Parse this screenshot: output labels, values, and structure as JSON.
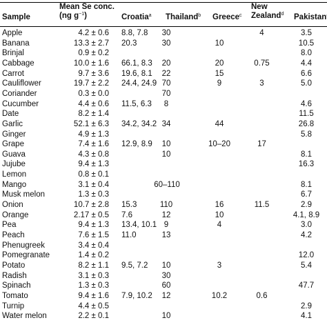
{
  "table": {
    "headers": {
      "sample": "Sample",
      "mean_line1": "Mean Se conc.",
      "mean_line2_pre": "(ng g",
      "mean_line2_sup": "−1",
      "mean_line2_post": ")",
      "croatia": "Croatia",
      "croatia_note": "a",
      "thailand": "Thailand",
      "thailand_note": "b",
      "greece": "Greece",
      "greece_note": "c",
      "nz_line1": "New",
      "nz_line2": "Zealand",
      "nz_note": "d",
      "pakistan": "Pakistan",
      "pakistan_note": "e"
    },
    "rows": [
      {
        "sample": "Apple",
        "mean": "4.2 ± 0.6",
        "croatia": "8.8, 7.8",
        "thailand": "30",
        "greece": "",
        "nz": "4",
        "pakistan": "3.5"
      },
      {
        "sample": "Banana",
        "mean": "13.3 ± 2.7",
        "croatia": "20.3",
        "thailand": "30",
        "greece": "10",
        "nz": "",
        "pakistan": "10.5"
      },
      {
        "sample": "Brinjal",
        "mean": "0.9 ± 0.2",
        "croatia": "",
        "thailand": "",
        "greece": "",
        "nz": "",
        "pakistan": "8.0"
      },
      {
        "sample": "Cabbage",
        "mean": "10.0 ± 1.6",
        "croatia": "66.1, 8.3",
        "thailand": "20",
        "greece": "20",
        "nz": "0.75",
        "pakistan": "4.4"
      },
      {
        "sample": "Carrot",
        "mean": "9.7 ± 3.6",
        "croatia": "19.6, 8.1",
        "thailand": "22",
        "greece": "15",
        "nz": "",
        "pakistan": "6.6"
      },
      {
        "sample": "Cauliflower",
        "mean": "19.7 ± 2.2",
        "croatia": "24.4, 24.9",
        "thailand": "70",
        "greece": "9",
        "nz": "3",
        "pakistan": "5.0"
      },
      {
        "sample": "Coriander",
        "mean": "0.3 ± 0.0",
        "croatia": "",
        "thailand": "70",
        "greece": "",
        "nz": "",
        "pakistan": ""
      },
      {
        "sample": "Cucumber",
        "mean": "4.4 ± 0.6",
        "croatia": "11.5, 6.3",
        "thailand": "8",
        "greece": "",
        "nz": "",
        "pakistan": "4.6"
      },
      {
        "sample": "Date",
        "mean": "8.2 ± 1.4",
        "croatia": "",
        "thailand": "",
        "greece": "",
        "nz": "",
        "pakistan": "11.5"
      },
      {
        "sample": "Garlic",
        "mean": "52.1 ± 6.3",
        "croatia": "34.2, 34.2",
        "thailand": "34",
        "greece": "44",
        "nz": "",
        "pakistan": "26.8"
      },
      {
        "sample": "Ginger",
        "mean": "4.9 ± 1.3",
        "croatia": "",
        "thailand": "",
        "greece": "",
        "nz": "",
        "pakistan": "5.8"
      },
      {
        "sample": "Grape",
        "mean": "7.4 ± 1.6",
        "croatia": "12.9, 8.9",
        "thailand": "10",
        "greece": "10–20",
        "nz": "17",
        "pakistan": ""
      },
      {
        "sample": "Guava",
        "mean": "4.3 ± 0.8",
        "croatia": "",
        "thailand": "10",
        "greece": "",
        "nz": "",
        "pakistan": "8.1"
      },
      {
        "sample": "Jujube",
        "mean": "9.4 ± 1.3",
        "croatia": "",
        "thailand": "",
        "greece": "",
        "nz": "",
        "pakistan": "16.3"
      },
      {
        "sample": "Lemon",
        "mean": "0.8 ± 0.1",
        "croatia": "",
        "thailand": "",
        "greece": "",
        "nz": "",
        "pakistan": ""
      },
      {
        "sample": "Mango",
        "mean": "3.1 ± 0.4",
        "croatia": "",
        "thailand": "60–110",
        "greece": "",
        "nz": "",
        "pakistan": "8.1"
      },
      {
        "sample": "Musk melon",
        "mean": "1.3 ± 0.3",
        "croatia": "",
        "thailand": "",
        "greece": "",
        "nz": "",
        "pakistan": "6.7"
      },
      {
        "sample": "Onion",
        "mean": "10.7 ± 2.8",
        "croatia": "15.3",
        "thailand": "110",
        "greece": "16",
        "nz": "11.5",
        "pakistan": "2.9"
      },
      {
        "sample": "Orange",
        "mean": "2.17 ± 0.5",
        "croatia": "7.6",
        "thailand": "12",
        "greece": "10",
        "nz": "",
        "pakistan": "4.1, 8.9"
      },
      {
        "sample": "Pea",
        "mean": "9.4 ± 1.3",
        "croatia": "13.4, 10.1",
        "thailand": "9",
        "greece": "4",
        "nz": "",
        "pakistan": "3.0"
      },
      {
        "sample": "Peach",
        "mean": "7.6 ± 1.5",
        "croatia": "11.0",
        "thailand": "13",
        "greece": "",
        "nz": "",
        "pakistan": "4.2"
      },
      {
        "sample": "Phenugreek",
        "mean": "3.4 ± 0.4",
        "croatia": "",
        "thailand": "",
        "greece": "",
        "nz": "",
        "pakistan": ""
      },
      {
        "sample": "Pomegranate",
        "mean": "1.4 ± 0.2",
        "croatia": "",
        "thailand": "",
        "greece": "",
        "nz": "",
        "pakistan": "12.0"
      },
      {
        "sample": "Potato",
        "mean": "8.2 ± 1.1",
        "croatia": "9.5, 7.2",
        "thailand": "10",
        "greece": "3",
        "nz": "",
        "pakistan": "5.4"
      },
      {
        "sample": "Radish",
        "mean": "3.1 ± 0.3",
        "croatia": "",
        "thailand": "30",
        "greece": "",
        "nz": "",
        "pakistan": ""
      },
      {
        "sample": "Spinach",
        "mean": "1.3 ± 0.3",
        "croatia": "",
        "thailand": "60",
        "greece": "",
        "nz": "",
        "pakistan": "47.7"
      },
      {
        "sample": "Tomato",
        "mean": "9.4 ± 1.6",
        "croatia": "7.9, 10.2",
        "thailand": "12",
        "greece": "10.2",
        "nz": "0.6",
        "pakistan": ""
      },
      {
        "sample": "Turnip",
        "mean": "4.4 ± 0.5",
        "croatia": "",
        "thailand": "",
        "greece": "",
        "nz": "",
        "pakistan": "2.9"
      },
      {
        "sample": "Water melon",
        "mean": "2.2 ± 0.1",
        "croatia": "",
        "thailand": "10",
        "greece": "",
        "nz": "",
        "pakistan": "4.1"
      }
    ]
  }
}
